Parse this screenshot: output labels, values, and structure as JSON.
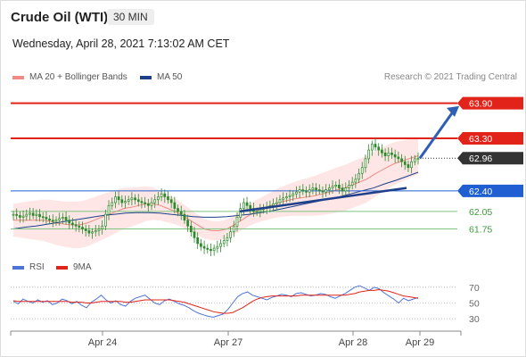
{
  "header": {
    "instrument": "Crude Oil (WTI)",
    "timeframe": "30 MIN",
    "datetime": "Wednesday, April 28, 2021 7:13:02 AM CET",
    "credit": "Research © 2021 Trading Central"
  },
  "legend": {
    "ma20": "MA 20 + Bollinger Bands",
    "ma50": "MA 50",
    "rsi": "RSI",
    "rsi_ma": "9MA"
  },
  "colors": {
    "resistance": "#e2231a",
    "support_blue": "#1f5fd1",
    "support_green": "#3a9a3a",
    "ma20": "#f08a84",
    "ma50": "#1f3f8a",
    "bollinger_fill": "#fde2e0",
    "candle": "#2d8a2d",
    "current_price": "#333333",
    "rsi": "#4d73d9",
    "rsi_ma": "#e2231a",
    "trend_arrow": "#2f5fb3"
  },
  "chart_data": [
    {
      "type": "candlestick",
      "x_ticks": [
        "Apr 24",
        "Apr 27",
        "Apr 28",
        "Apr 29"
      ],
      "ylim": [
        61.3,
        64.2
      ],
      "price_levels": [
        {
          "label": "63.90",
          "value": 63.9,
          "kind": "resistance"
        },
        {
          "label": "63.30",
          "value": 63.3,
          "kind": "resistance"
        },
        {
          "label": "62.96",
          "value": 62.96,
          "kind": "current"
        },
        {
          "label": "62.40",
          "value": 62.4,
          "kind": "support"
        },
        {
          "label": "62.05",
          "value": 62.05,
          "kind": "target"
        },
        {
          "label": "61.75",
          "value": 61.75,
          "kind": "target"
        }
      ],
      "close_series": [
        62.0,
        61.98,
        61.95,
        61.97,
        62.0,
        62.02,
        61.98,
        62.0,
        61.96,
        61.95,
        61.92,
        61.9,
        61.88,
        61.9,
        61.93,
        61.95,
        61.9,
        61.85,
        61.82,
        61.8,
        61.78,
        61.75,
        61.72,
        61.68,
        61.7,
        61.72,
        61.75,
        61.8,
        62.0,
        62.15,
        62.2,
        62.3,
        62.25,
        62.2,
        62.22,
        62.25,
        62.28,
        62.25,
        62.22,
        62.2,
        62.18,
        62.15,
        62.2,
        62.25,
        62.3,
        62.35,
        62.3,
        62.25,
        62.2,
        62.1,
        62.05,
        62.0,
        61.9,
        61.8,
        61.7,
        61.6,
        61.5,
        61.45,
        61.42,
        61.4,
        61.38,
        61.42,
        61.45,
        61.5,
        61.55,
        61.6,
        61.7,
        61.8,
        61.95,
        62.1,
        62.2,
        62.15,
        62.1,
        62.05,
        62.05,
        62.08,
        62.1,
        62.12,
        62.15,
        62.18,
        62.2,
        62.25,
        62.28,
        62.3,
        62.32,
        62.35,
        62.38,
        62.42,
        62.4,
        62.38,
        62.42,
        62.45,
        62.42,
        62.4,
        62.38,
        62.42,
        62.45,
        62.48,
        62.5,
        62.45,
        62.4,
        62.45,
        62.5,
        62.55,
        62.6,
        62.7,
        62.8,
        62.95,
        63.1,
        63.2,
        63.15,
        63.1,
        63.05,
        63.0,
        63.05,
        63.02,
        62.98,
        62.95,
        62.9,
        62.85,
        62.8,
        62.9,
        62.95,
        62.96
      ],
      "ma20_series": [
        61.9,
        61.9,
        61.9,
        61.9,
        61.9,
        61.88,
        61.85,
        61.83,
        61.82,
        61.82,
        61.85,
        61.9,
        61.95,
        62.0,
        62.05,
        62.1,
        62.12,
        62.15,
        62.18,
        62.18,
        62.15,
        62.1,
        62.05,
        61.98,
        61.9,
        61.82,
        61.75,
        61.72,
        61.72,
        61.75,
        61.82,
        61.9,
        61.98,
        62.05,
        62.1,
        62.15,
        62.2,
        62.23,
        62.26,
        62.28,
        62.3,
        62.32,
        62.35,
        62.38,
        62.42,
        62.45,
        62.5,
        62.55,
        62.6,
        62.68,
        62.75,
        62.82,
        62.88,
        62.92,
        62.96,
        63.0
      ],
      "ma50_series": [
        61.75,
        61.78,
        61.8,
        61.83,
        61.86,
        61.89,
        61.92,
        61.95,
        61.98,
        62.0,
        62.02,
        62.03,
        62.03,
        62.02,
        62.0,
        61.98,
        61.96,
        61.95,
        61.95,
        61.96,
        61.98,
        62.0,
        62.03,
        62.06,
        62.1,
        62.14,
        62.18,
        62.22,
        62.26,
        62.3,
        62.35,
        62.4,
        62.45,
        62.52,
        62.58,
        62.65,
        62.72
      ],
      "trendline": {
        "from": 62.05,
        "to": 62.45
      },
      "projection": {
        "from": 62.96,
        "to": 63.85
      }
    },
    {
      "type": "line",
      "title": "RSI",
      "ylim": [
        20,
        80
      ],
      "y_ticks": [
        70,
        50,
        30
      ],
      "series": [
        {
          "name": "RSI",
          "values": [
            52,
            49,
            55,
            52,
            50,
            54,
            51,
            53,
            48,
            50,
            55,
            53,
            49,
            52,
            47,
            44,
            51,
            55,
            60,
            54,
            50,
            53,
            48,
            46,
            52,
            56,
            58,
            60,
            55,
            50,
            48,
            53,
            55,
            52,
            49,
            47,
            44,
            40,
            37,
            35,
            33,
            32,
            34,
            36,
            42,
            50,
            58,
            62,
            64,
            60,
            58,
            56,
            54,
            57,
            59,
            61,
            60,
            58,
            62,
            63,
            61,
            59,
            60,
            62,
            61,
            58,
            56,
            59,
            62,
            66,
            70,
            72,
            69,
            66,
            70,
            68,
            63,
            59,
            55,
            50,
            56,
            53,
            55,
            57
          ]
        },
        {
          "name": "9MA",
          "values": [
            53,
            52,
            52,
            52,
            52,
            52,
            52,
            52,
            52,
            52,
            52,
            52,
            51,
            51,
            51,
            50,
            50,
            51,
            52,
            52,
            52,
            52,
            52,
            51,
            51,
            52,
            53,
            54,
            54,
            54,
            54,
            54,
            54,
            53,
            52,
            51,
            49,
            47,
            45,
            43,
            41,
            39,
            38,
            37,
            37,
            38,
            41,
            44,
            48,
            52,
            55,
            57,
            58,
            59,
            59,
            59,
            59,
            59,
            59,
            60,
            60,
            60,
            60,
            60,
            60,
            60,
            60,
            60,
            60,
            61,
            62,
            64,
            65,
            66,
            66,
            67,
            66,
            65,
            63,
            61,
            59,
            58,
            57,
            56
          ]
        }
      ]
    }
  ]
}
